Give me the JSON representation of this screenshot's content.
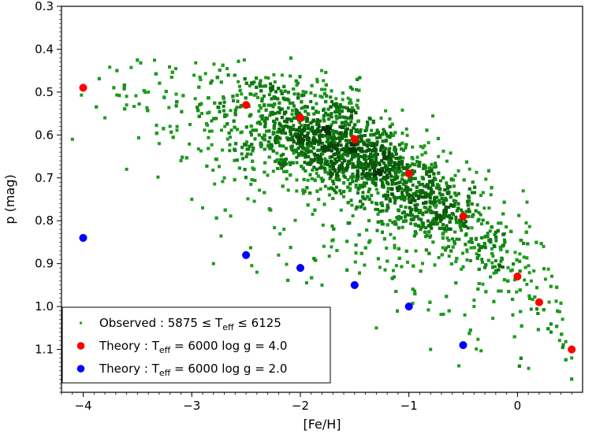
{
  "chart_data": {
    "type": "scatter",
    "xlabel": "[Fe/H]",
    "ylabel": "p (mag)",
    "xlim": [
      -4.2,
      0.6
    ],
    "ylim": [
      1.2,
      0.3
    ],
    "y_inverted": true,
    "x_ticks": [
      -4,
      -3,
      -2,
      -1,
      0
    ],
    "x_tick_labels": [
      "−4",
      "−3",
      "−2",
      "−1",
      "0"
    ],
    "y_ticks": [
      0.3,
      0.4,
      0.5,
      0.6,
      0.7,
      0.8,
      0.9,
      1.0,
      1.1
    ],
    "y_tick_labels": [
      "0.3",
      "0.4",
      "0.5",
      "0.6",
      "0.7",
      "0.8",
      "0.9",
      "1.0",
      "1.1"
    ],
    "grid": false,
    "legend_position": "lower-left",
    "series": [
      {
        "name": "Observed : 5875 ≤ T_eff ≤ 6125",
        "legend_label": {
          "pre": "Observed : 5875 ≤ T",
          "sub": "eff",
          "post": " ≤ 6125"
        },
        "color": "#1a9e1a",
        "marker": "square",
        "distribution": {
          "note": "dense cloud of several thousand stars",
          "ridge_x": [
            -2.5,
            -2.0,
            -1.5,
            -1.0,
            -0.5,
            0.0
          ],
          "ridge_y": [
            0.56,
            0.6,
            0.63,
            0.72,
            0.8,
            0.9
          ]
        }
      },
      {
        "name": "Theory : T_eff = 6000 log g = 4.0",
        "legend_label": {
          "pre": "Theory : T",
          "sub": "eff",
          "post": " = 6000 log g = 4.0"
        },
        "color": "#ff0000",
        "x": [
          -4.0,
          -2.5,
          -2.0,
          -1.5,
          -1.0,
          -0.5,
          0.0,
          0.2,
          0.5
        ],
        "y": [
          0.49,
          0.53,
          0.56,
          0.61,
          0.69,
          0.79,
          0.93,
          0.99,
          1.1
        ]
      },
      {
        "name": "Theory : T_eff = 6000 log g = 2.0",
        "legend_label": {
          "pre": "Theory :  T",
          "sub": "eff",
          "post": " = 6000 log g = 2.0"
        },
        "color": "#0000ff",
        "x": [
          -4.0,
          -2.5,
          -2.0,
          -1.5,
          -1.0,
          -0.5
        ],
        "y": [
          0.84,
          0.88,
          0.91,
          0.95,
          1.0,
          1.09
        ]
      }
    ]
  }
}
